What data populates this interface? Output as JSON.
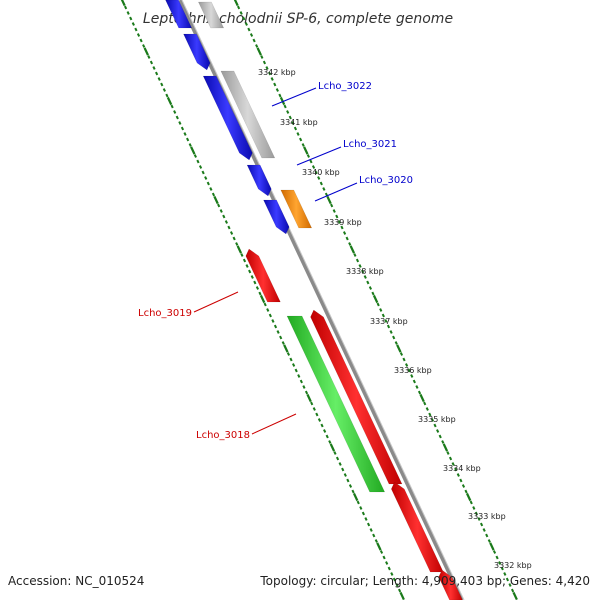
{
  "title": "Leptothrix cholodnii SP-6, complete genome",
  "footer": {
    "accession": "Accession: NC_010524",
    "topology": "Topology: circular; Length: 4,909,403 bp; Genes: 4,420"
  },
  "colors": {
    "forward_cds": "#1010e0",
    "reverse_cds": "#ee1111",
    "other_gray": "#bbbbbb",
    "other_orange": "#f08a10",
    "other_green": "#33cc33",
    "backbone": "#8c8c8c",
    "tick_green": "#1a7a1a"
  },
  "kbp_labels": [
    "3342 kbp",
    "3341 kbp",
    "3340 kbp",
    "3339 kbp",
    "3338 kbp",
    "3337 kbp",
    "3336 kbp",
    "3335 kbp",
    "3334 kbp",
    "3333 kbp",
    "3332 kbp"
  ],
  "genes": [
    {
      "label": "Lcho_3022",
      "color": "#0000cc"
    },
    {
      "label": "Lcho_3021",
      "color": "#0000cc"
    },
    {
      "label": "Lcho_3020",
      "color": "#0000cc"
    },
    {
      "label": "Lcho_3019",
      "color": "#cc0000"
    },
    {
      "label": "Lcho_3018",
      "color": "#cc0000"
    }
  ]
}
